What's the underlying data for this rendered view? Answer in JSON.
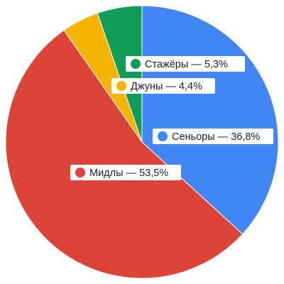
{
  "chart_data": {
    "type": "pie",
    "title": "",
    "slices": [
      {
        "label": "Сеньоры — 36,8%",
        "value": 36.8,
        "color": "#4285f4"
      },
      {
        "label": "Мидлы — 53,5%",
        "value": 53.5,
        "color": "#db4437"
      },
      {
        "label": "Джуны — 4,4%",
        "value": 4.4,
        "color": "#f4b400"
      },
      {
        "label": "Стажёры — 5,3%",
        "value": 5.3,
        "color": "#0f9d58"
      }
    ],
    "start_angle_deg": 0,
    "direction": "clockwise",
    "legend": "none",
    "data_labels": "inside, white box with colored dot"
  }
}
